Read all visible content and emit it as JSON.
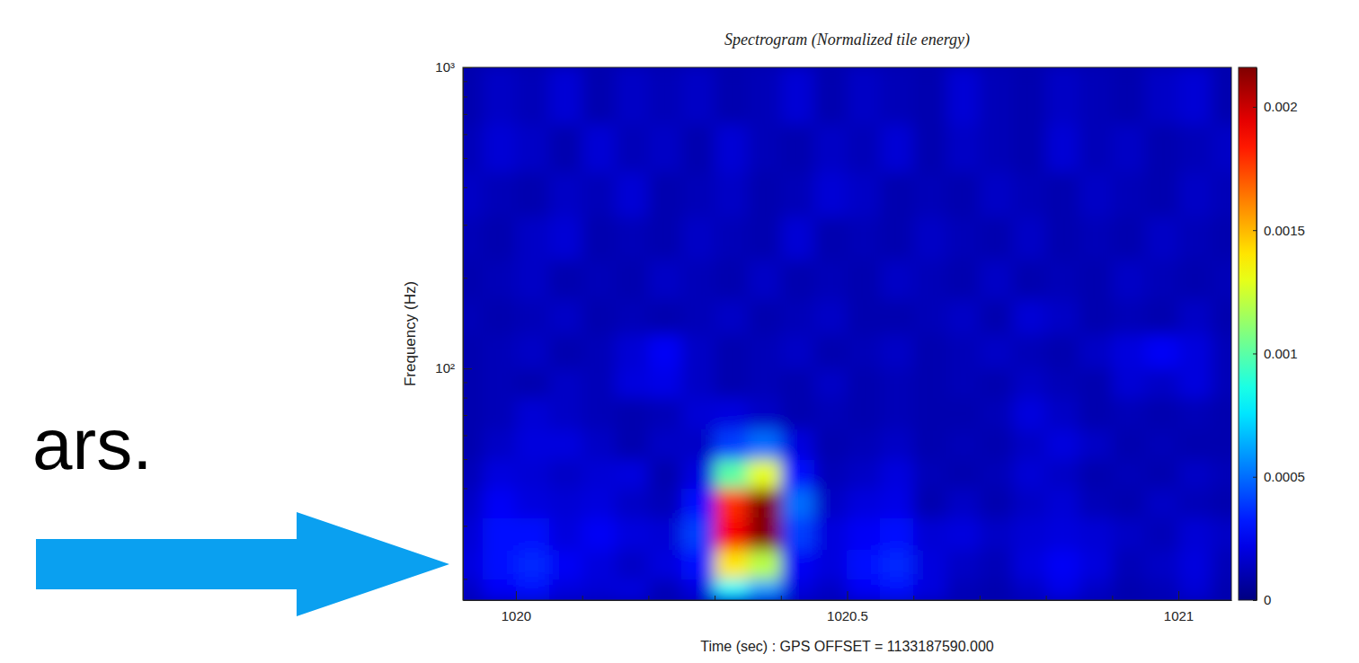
{
  "chart_data": {
    "type": "heatmap",
    "title": "Spectrogram (Normalized tile energy)",
    "xlabel": "Time (sec) : GPS OFFSET = 1133187590.000",
    "ylabel": "Frequency (Hz)",
    "log": "y",
    "grid": false,
    "xlim": [
      1019.92,
      1021.08
    ],
    "xticks": [
      1020,
      1020.5,
      1021
    ],
    "xticks_minor": [
      1020.1,
      1020.2,
      1020.3,
      1020.4,
      1020.6,
      1020.7,
      1020.8,
      1020.9
    ],
    "ylim": [
      17,
      1000
    ],
    "yticks": [
      {
        "value": 100,
        "label": "10²"
      },
      {
        "value": 1000,
        "label": "10³"
      }
    ],
    "yticks_minor": [
      20,
      30,
      40,
      50,
      60,
      70,
      80,
      90,
      200,
      300,
      400,
      500,
      600,
      700,
      800,
      900
    ],
    "clim": [
      0,
      0.00216
    ],
    "cticks": [
      0,
      0.0005,
      0.001,
      0.0015,
      0.002
    ],
    "x_edges": [
      1019.9,
      1019.95,
      1020,
      1020.05,
      1020.1,
      1020.15,
      1020.2,
      1020.25,
      1020.3,
      1020.35,
      1020.4,
      1020.45,
      1020.5,
      1020.55,
      1020.6,
      1020.65,
      1020.7,
      1020.75,
      1020.8,
      1020.85,
      1020.9,
      1020.95,
      1021,
      1021.05,
      1021.1
    ],
    "y_edges": [
      17,
      20,
      25,
      32,
      40,
      50,
      63,
      80,
      100,
      130,
      170,
      230,
      320,
      450,
      650,
      1000
    ],
    "cells": [
      [
        0.00015,
        0.00025,
        0.0003,
        0.0002,
        0.00018,
        0.0002,
        0.00012,
        0.0002,
        0.0008,
        0.0006,
        0.0002,
        0.00015,
        0.00025,
        0.0003,
        0.0002,
        0.00012,
        0.0001,
        0.00015,
        0.00022,
        0.00015,
        0.0001,
        0.00012,
        0.00018,
        0.0001
      ],
      [
        0.0002,
        0.0003,
        0.00035,
        0.00025,
        0.0002,
        0.00015,
        0.0002,
        0.0003,
        0.0014,
        0.0012,
        0.00025,
        0.0002,
        0.0003,
        0.00035,
        0.0002,
        0.00015,
        0.00012,
        0.0002,
        0.00025,
        0.0002,
        0.00012,
        0.00015,
        0.0002,
        0.00012
      ],
      [
        0.00018,
        0.0003,
        0.0003,
        0.0002,
        0.00025,
        0.0002,
        0.00018,
        0.0004,
        0.0019,
        0.00215,
        0.0004,
        0.0002,
        0.00025,
        0.0003,
        0.00018,
        0.0002,
        0.00015,
        0.00018,
        0.0002,
        0.00018,
        0.00015,
        0.00012,
        0.00018,
        0.00015
      ],
      [
        0.00015,
        0.00025,
        0.0002,
        0.00018,
        0.0002,
        0.00015,
        0.00012,
        0.0003,
        0.0018,
        0.00215,
        0.0005,
        0.00015,
        0.0002,
        0.00022,
        0.0001,
        0.00015,
        0.0001,
        0.00015,
        0.00018,
        0.00012,
        0.0001,
        0.00015,
        0.00012,
        0.0001
      ],
      [
        0.00012,
        0.0002,
        0.00018,
        0.00015,
        0.00018,
        0.0002,
        0.0001,
        0.0002,
        0.001,
        0.0013,
        0.0003,
        0.00012,
        0.00015,
        0.0002,
        0.00012,
        0.0001,
        0.00012,
        0.00018,
        0.00015,
        0.0001,
        0.00012,
        0.0001,
        0.00015,
        0.00012
      ],
      [
        0.0001,
        0.00015,
        0.0002,
        0.0002,
        0.00015,
        0.0001,
        0.00015,
        0.00015,
        0.0004,
        0.0005,
        0.0002,
        0.0001,
        0.00012,
        0.00015,
        0.0001,
        0.00012,
        0.0001,
        0.00015,
        0.0002,
        0.00015,
        0.0001,
        0.00012,
        0.0001,
        0.0001
      ],
      [
        0.0001,
        0.00012,
        0.00018,
        0.00015,
        0.00012,
        0.0001,
        0.00012,
        0.00018,
        0.0002,
        0.00015,
        0.0001,
        0.00012,
        0.0001,
        0.00012,
        0.0001,
        0.0001,
        0.00012,
        0.0002,
        0.00015,
        0.0001,
        0.00012,
        0.0001,
        0.00012,
        0.0001
      ],
      [
        0.0001,
        0.00012,
        0.0001,
        0.00015,
        0.00012,
        0.0002,
        0.00022,
        0.00015,
        0.0001,
        0.00012,
        0.0001,
        0.00015,
        0.0001,
        0.00012,
        0.0001,
        0.00012,
        0.0001,
        0.00015,
        0.00012,
        0.0001,
        0.00018,
        0.00015,
        0.0002,
        0.00012
      ],
      [
        0.0001,
        0.00012,
        0.00015,
        0.0001,
        0.00012,
        0.00018,
        0.00025,
        0.00015,
        0.0001,
        0.00012,
        0.00015,
        0.0001,
        0.00012,
        0.00015,
        0.0001,
        0.00012,
        0.00015,
        0.00012,
        0.0001,
        0.00015,
        0.0002,
        0.00025,
        0.0002,
        0.00012
      ],
      [
        0.00012,
        0.0001,
        0.00012,
        0.00015,
        0.0001,
        0.00012,
        0.0001,
        0.00012,
        0.00015,
        0.0001,
        0.00012,
        0.00015,
        0.0001,
        0.0001,
        0.00012,
        0.00015,
        0.0001,
        0.00018,
        0.00015,
        0.0001,
        0.00012,
        0.0001,
        0.00015,
        0.0001
      ],
      [
        0.0001,
        0.00012,
        0.00015,
        0.0001,
        0.00012,
        0.0001,
        0.00015,
        0.00012,
        0.0001,
        0.00015,
        0.0001,
        0.00012,
        0.0001,
        0.00015,
        0.00012,
        0.0001,
        0.00015,
        0.0001,
        0.00012,
        0.0001,
        0.00015,
        0.00012,
        0.0001,
        0.00012
      ],
      [
        0.00012,
        0.0001,
        0.00015,
        0.00018,
        0.0001,
        0.00012,
        0.0001,
        0.00015,
        0.00012,
        0.0001,
        0.00018,
        0.0001,
        0.00012,
        0.0001,
        0.00015,
        0.00012,
        0.0001,
        0.00015,
        0.0001,
        0.00012,
        0.0001,
        0.00015,
        0.00012,
        0.0001
      ],
      [
        0.00015,
        0.00012,
        0.0001,
        0.00015,
        0.00012,
        0.00018,
        0.0001,
        0.00012,
        0.00015,
        0.0001,
        0.00012,
        0.00018,
        0.00015,
        0.0001,
        0.00012,
        0.0001,
        0.00015,
        0.00012,
        0.0001,
        0.00015,
        0.00012,
        0.0001,
        0.00015,
        0.00012
      ],
      [
        0.00012,
        0.00018,
        0.00015,
        0.0001,
        0.00018,
        0.00012,
        0.00015,
        0.0001,
        0.00018,
        0.00012,
        0.0001,
        0.00015,
        0.00012,
        0.00018,
        0.0001,
        0.00015,
        0.00012,
        0.0001,
        0.00018,
        0.00012,
        0.00015,
        0.0001,
        0.00012,
        0.00015
      ],
      [
        0.0001,
        0.00015,
        0.00012,
        0.00018,
        0.0001,
        0.00015,
        0.00012,
        0.00015,
        0.0001,
        0.00012,
        0.00018,
        0.0001,
        0.00015,
        0.00012,
        0.0001,
        0.00018,
        0.00012,
        0.0001,
        0.00015,
        0.00012,
        0.0001,
        0.00015,
        0.00018,
        0.0001
      ]
    ]
  },
  "slide": {
    "text": "ars."
  }
}
